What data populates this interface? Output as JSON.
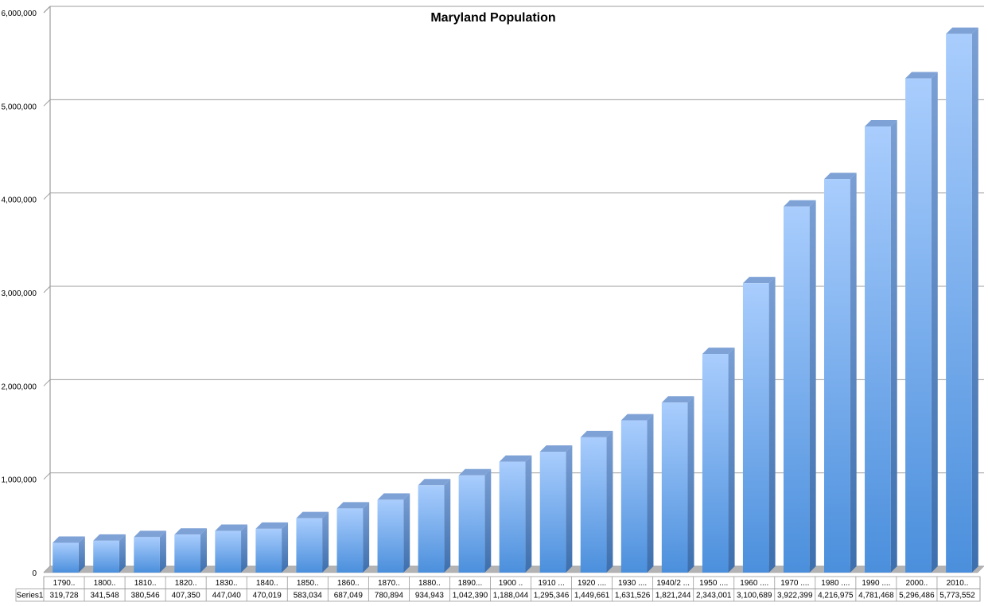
{
  "chart_data": {
    "type": "bar",
    "title": "Maryland Population",
    "categories": [
      "1790..",
      "1800..",
      "1810..",
      "1820..",
      "1830..",
      "1840..",
      "1850..",
      "1860..",
      "1870..",
      "1880..",
      "1890...",
      "1900 ..",
      "1910 ...",
      "1920 ....",
      "1930 ....",
      "1940/2 ...",
      "1950 ....",
      "1960 ....",
      "1970 ....",
      "1980 ....",
      "1990 ....",
      "2000..",
      "2010.."
    ],
    "series": [
      {
        "name": "Series1",
        "values": [
          319728,
          341548,
          380546,
          407350,
          447040,
          470019,
          583034,
          687049,
          780894,
          934943,
          1042390,
          1188044,
          1295346,
          1449661,
          1631526,
          1821244,
          2343001,
          3100689,
          3922399,
          4216975,
          4781468,
          5296486,
          5773552
        ]
      }
    ],
    "value_labels": [
      "319,728",
      "341,548",
      "380,546",
      "407,350",
      "447,040",
      "470,019",
      "583,034",
      "687,049",
      "780,894",
      "934,943",
      "1,042,390",
      "1,188,044",
      "1,295,346",
      "1,449,661",
      "1,631,526",
      "1,821,244",
      "2,343,001",
      "3,100,689",
      "3,922,399",
      "4,216,975",
      "4,781,468",
      "5,296,486",
      "5,773,552"
    ],
    "y_ticks": [
      0,
      1000000,
      2000000,
      3000000,
      4000000,
      5000000,
      6000000
    ],
    "y_tick_labels": [
      "0",
      "1,000,000",
      "2,000,000",
      "3,000,000",
      "4,000,000",
      "5,000,000",
      "6,000,000"
    ],
    "ylim": [
      0,
      6000000
    ],
    "grid": true,
    "legend": "none",
    "data_table": true,
    "style": "3d-column",
    "colors": {
      "bar_top": "#a9cdfd",
      "bar_bottom": "#4b8fdc",
      "bar_side_top": "#7a9fd4",
      "bar_side_bottom": "#3d6fae",
      "bar_cap": "#7fa2d6",
      "floor": "#b3b3b3",
      "grid": "#9c9c9c"
    }
  }
}
